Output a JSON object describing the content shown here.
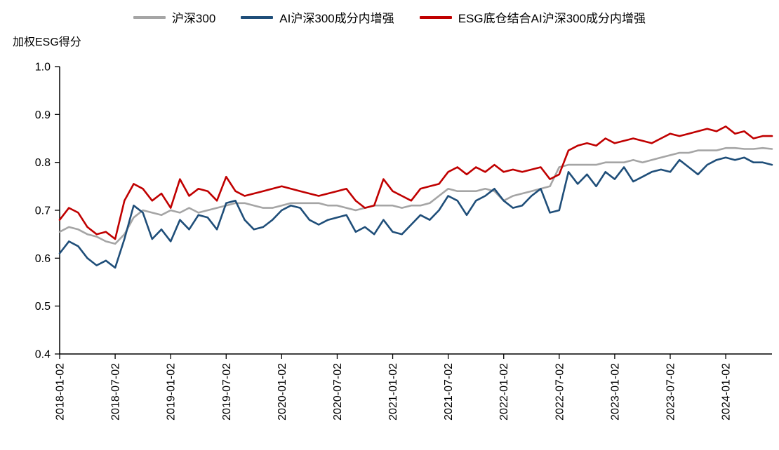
{
  "chart_data": {
    "type": "line",
    "title": "",
    "xlabel": "",
    "ylabel": "加权ESG得分",
    "ylim": [
      0.4,
      1.0
    ],
    "yticks": [
      0.4,
      0.5,
      0.6,
      0.7,
      0.8,
      0.9,
      1.0
    ],
    "grid": false,
    "legend_position": "top-center",
    "xtick_labels": [
      "2018-01-02",
      "2018-07-02",
      "2019-01-02",
      "2019-07-02",
      "2020-01-02",
      "2020-07-02",
      "2021-01-02",
      "2021-07-02",
      "2022-01-02",
      "2022-07-02",
      "2023-01-02",
      "2023-07-02",
      "2024-01-02"
    ],
    "x": [
      "2018-01",
      "2018-02",
      "2018-03",
      "2018-04",
      "2018-05",
      "2018-06",
      "2018-07",
      "2018-08",
      "2018-09",
      "2018-10",
      "2018-11",
      "2018-12",
      "2019-01",
      "2019-02",
      "2019-03",
      "2019-04",
      "2019-05",
      "2019-06",
      "2019-07",
      "2019-08",
      "2019-09",
      "2019-10",
      "2019-11",
      "2019-12",
      "2020-01",
      "2020-02",
      "2020-03",
      "2020-04",
      "2020-05",
      "2020-06",
      "2020-07",
      "2020-08",
      "2020-09",
      "2020-10",
      "2020-11",
      "2020-12",
      "2021-01",
      "2021-02",
      "2021-03",
      "2021-04",
      "2021-05",
      "2021-06",
      "2021-07",
      "2021-08",
      "2021-09",
      "2021-10",
      "2021-11",
      "2021-12",
      "2022-01",
      "2022-02",
      "2022-03",
      "2022-04",
      "2022-05",
      "2022-06",
      "2022-07",
      "2022-08",
      "2022-09",
      "2022-10",
      "2022-11",
      "2022-12",
      "2023-01",
      "2023-02",
      "2023-03",
      "2023-04",
      "2023-05",
      "2023-06",
      "2023-07",
      "2023-08",
      "2023-09",
      "2023-10",
      "2023-11",
      "2023-12",
      "2024-01",
      "2024-02",
      "2024-03",
      "2024-04",
      "2024-05",
      "2024-06"
    ],
    "series": [
      {
        "name": "沪深300",
        "color": "#a5a5a5",
        "values": [
          0.655,
          0.665,
          0.66,
          0.65,
          0.645,
          0.635,
          0.63,
          0.65,
          0.685,
          0.7,
          0.695,
          0.69,
          0.7,
          0.695,
          0.705,
          0.695,
          0.7,
          0.705,
          0.71,
          0.715,
          0.715,
          0.71,
          0.705,
          0.705,
          0.71,
          0.715,
          0.715,
          0.715,
          0.715,
          0.71,
          0.71,
          0.705,
          0.7,
          0.705,
          0.71,
          0.71,
          0.71,
          0.705,
          0.71,
          0.71,
          0.715,
          0.73,
          0.745,
          0.74,
          0.74,
          0.74,
          0.745,
          0.74,
          0.72,
          0.73,
          0.735,
          0.74,
          0.745,
          0.75,
          0.79,
          0.795,
          0.795,
          0.795,
          0.795,
          0.8,
          0.8,
          0.8,
          0.805,
          0.8,
          0.805,
          0.81,
          0.815,
          0.82,
          0.82,
          0.825,
          0.825,
          0.825,
          0.83,
          0.83,
          0.828,
          0.828,
          0.83,
          0.828
        ]
      },
      {
        "name": "AI沪深300成分内增强",
        "color": "#1f4e79",
        "values": [
          0.61,
          0.635,
          0.625,
          0.6,
          0.585,
          0.595,
          0.58,
          0.64,
          0.71,
          0.695,
          0.64,
          0.66,
          0.635,
          0.68,
          0.66,
          0.69,
          0.685,
          0.66,
          0.715,
          0.72,
          0.68,
          0.66,
          0.665,
          0.68,
          0.7,
          0.71,
          0.705,
          0.68,
          0.67,
          0.68,
          0.685,
          0.69,
          0.655,
          0.665,
          0.65,
          0.68,
          0.655,
          0.65,
          0.67,
          0.69,
          0.68,
          0.7,
          0.73,
          0.72,
          0.69,
          0.72,
          0.73,
          0.745,
          0.72,
          0.705,
          0.71,
          0.73,
          0.745,
          0.695,
          0.7,
          0.78,
          0.755,
          0.775,
          0.75,
          0.78,
          0.765,
          0.79,
          0.76,
          0.77,
          0.78,
          0.785,
          0.78,
          0.805,
          0.79,
          0.775,
          0.795,
          0.805,
          0.81,
          0.805,
          0.81,
          0.8,
          0.8,
          0.795
        ]
      },
      {
        "name": "ESG底仓结合AI沪深300成分内增强",
        "color": "#c00000",
        "values": [
          0.68,
          0.705,
          0.695,
          0.665,
          0.65,
          0.655,
          0.64,
          0.72,
          0.755,
          0.745,
          0.72,
          0.735,
          0.705,
          0.765,
          0.73,
          0.745,
          0.74,
          0.72,
          0.77,
          0.74,
          0.73,
          0.735,
          0.74,
          0.745,
          0.75,
          0.745,
          0.74,
          0.735,
          0.73,
          0.735,
          0.74,
          0.745,
          0.72,
          0.705,
          0.71,
          0.765,
          0.74,
          0.73,
          0.72,
          0.745,
          0.75,
          0.755,
          0.78,
          0.79,
          0.775,
          0.79,
          0.78,
          0.795,
          0.78,
          0.785,
          0.78,
          0.785,
          0.79,
          0.765,
          0.775,
          0.825,
          0.835,
          0.84,
          0.835,
          0.85,
          0.84,
          0.845,
          0.85,
          0.845,
          0.84,
          0.85,
          0.86,
          0.855,
          0.86,
          0.865,
          0.87,
          0.865,
          0.875,
          0.86,
          0.865,
          0.85,
          0.855,
          0.855
        ]
      }
    ]
  }
}
